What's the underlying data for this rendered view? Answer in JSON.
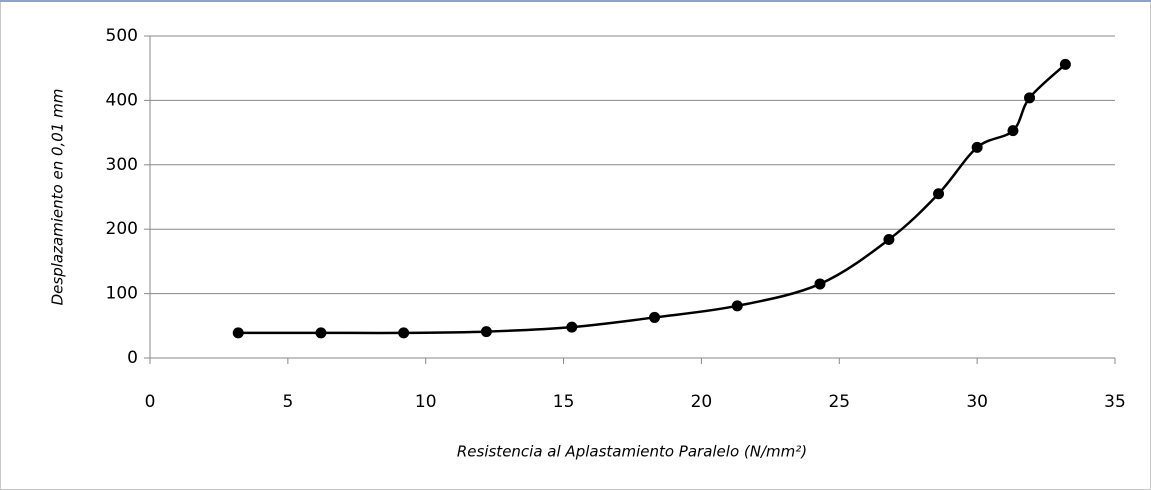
{
  "chart_data": {
    "type": "scatter",
    "x_label": "Resistencia al Aplastamiento Paralelo (N/mm²)",
    "y_label": "Desplazamiento  en 0,01 mm",
    "series": [
      {
        "color": "#000000",
        "x": [
          3.2,
          6.2,
          9.2,
          12.2,
          15.3,
          18.3,
          21.3,
          24.3,
          26.8,
          28.6,
          30.0,
          31.3,
          31.9,
          33.2
        ],
        "values": [
          39,
          39,
          39,
          41,
          48,
          63,
          81,
          115,
          184,
          255,
          327,
          353,
          404,
          456
        ]
      }
    ],
    "smooth_line": true,
    "xlim": [
      0,
      35
    ],
    "xticks": [
      0,
      5,
      10,
      15,
      20,
      25,
      30,
      35
    ],
    "ylim": [
      0,
      500
    ],
    "yticks": [
      0,
      100,
      200,
      300,
      400,
      500
    ],
    "grid": true
  }
}
